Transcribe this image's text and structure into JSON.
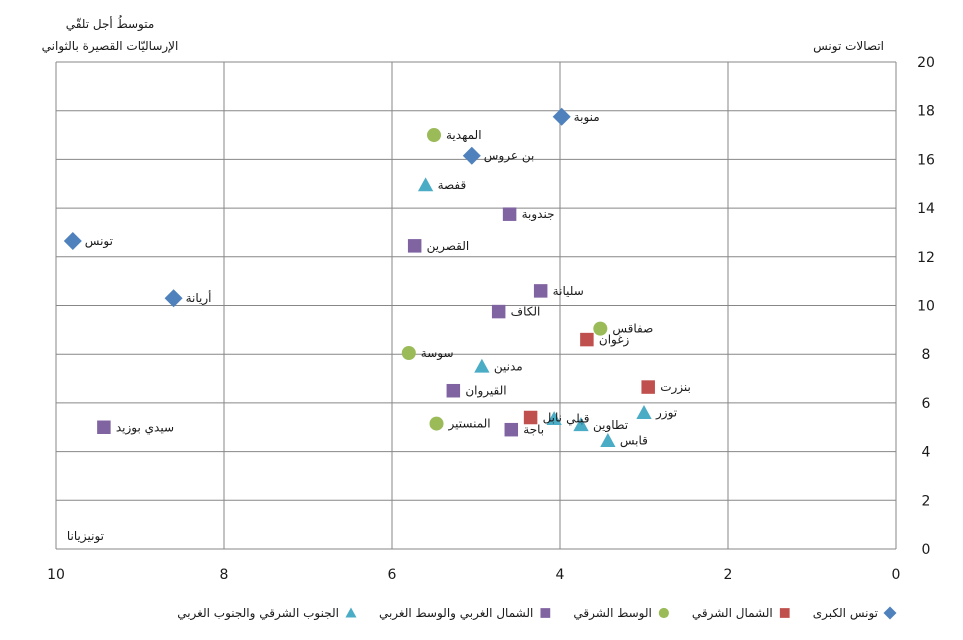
{
  "chart_data": {
    "type": "scatter",
    "x_axis": {
      "min": 0,
      "max": 10,
      "reversed": true,
      "ticks": [
        10,
        8,
        6,
        4,
        2,
        0
      ]
    },
    "y_axis": {
      "min": 0,
      "max": 20,
      "ticks": [
        0,
        2,
        4,
        6,
        8,
        10,
        12,
        14,
        16,
        18,
        20
      ]
    },
    "grid": true,
    "annotations": {
      "top_left": [
        "متوسطُ أجل تلقّي",
        "الإرساليّات القصيرة بالثواني"
      ],
      "top_right": "اتصالات تونس",
      "bottom_left": "تونيزيانا"
    },
    "legend_placement": "bottom",
    "series": [
      {
        "name": "تونس الكبرى",
        "marker": "diamond",
        "color": "#4F81BD",
        "points": [
          {
            "label": "منوبة",
            "x": 3.98,
            "y": 17.75
          },
          {
            "label": "بن عروس",
            "x": 5.05,
            "y": 16.15
          },
          {
            "label": "تونس",
            "x": 9.8,
            "y": 12.65
          },
          {
            "label": "أريانة",
            "x": 8.6,
            "y": 10.3
          }
        ]
      },
      {
        "name": "الشمال الشرقي",
        "marker": "square",
        "color": "#C0504D",
        "points": [
          {
            "label": "زغوان",
            "x": 3.68,
            "y": 8.6
          },
          {
            "label": "بنزرت",
            "x": 2.95,
            "y": 6.65
          },
          {
            "label": "نابل",
            "x": 4.35,
            "y": 5.4
          }
        ]
      },
      {
        "name": "الوسط الشرقي",
        "marker": "circle",
        "color": "#9BBB59",
        "points": [
          {
            "label": "المهدية",
            "x": 5.5,
            "y": 17.0
          },
          {
            "label": "صفاقس",
            "x": 3.52,
            "y": 9.05
          },
          {
            "label": "سوسة",
            "x": 5.8,
            "y": 8.05
          },
          {
            "label": "المنستير",
            "x": 5.47,
            "y": 5.15
          }
        ]
      },
      {
        "name": "الشمال الغربي والوسط الغربي",
        "marker": "square",
        "color": "#8064A2",
        "points": [
          {
            "label": "جندوبة",
            "x": 4.6,
            "y": 13.75
          },
          {
            "label": "القصرين",
            "x": 5.73,
            "y": 12.45
          },
          {
            "label": "سليانة",
            "x": 4.23,
            "y": 10.6
          },
          {
            "label": "الكاف",
            "x": 4.73,
            "y": 9.75
          },
          {
            "label": "القيروان",
            "x": 5.27,
            "y": 6.5
          },
          {
            "label": "باجة",
            "x": 4.58,
            "y": 4.9
          },
          {
            "label": "سيدي بوزيد",
            "x": 9.43,
            "y": 5.0
          }
        ]
      },
      {
        "name": "الجنوب الشرقي والجنوب الغربي",
        "marker": "triangle",
        "color": "#4BACC6",
        "points": [
          {
            "label": "قفصة",
            "x": 5.6,
            "y": 14.95
          },
          {
            "label": "مدنين",
            "x": 4.93,
            "y": 7.5
          },
          {
            "label": "توزر",
            "x": 3.0,
            "y": 5.6
          },
          {
            "label": "قبلي",
            "x": 4.07,
            "y": 5.35
          },
          {
            "label": "تطاوين",
            "x": 3.75,
            "y": 5.1
          },
          {
            "label": "قابس",
            "x": 3.43,
            "y": 4.45
          }
        ]
      }
    ]
  }
}
